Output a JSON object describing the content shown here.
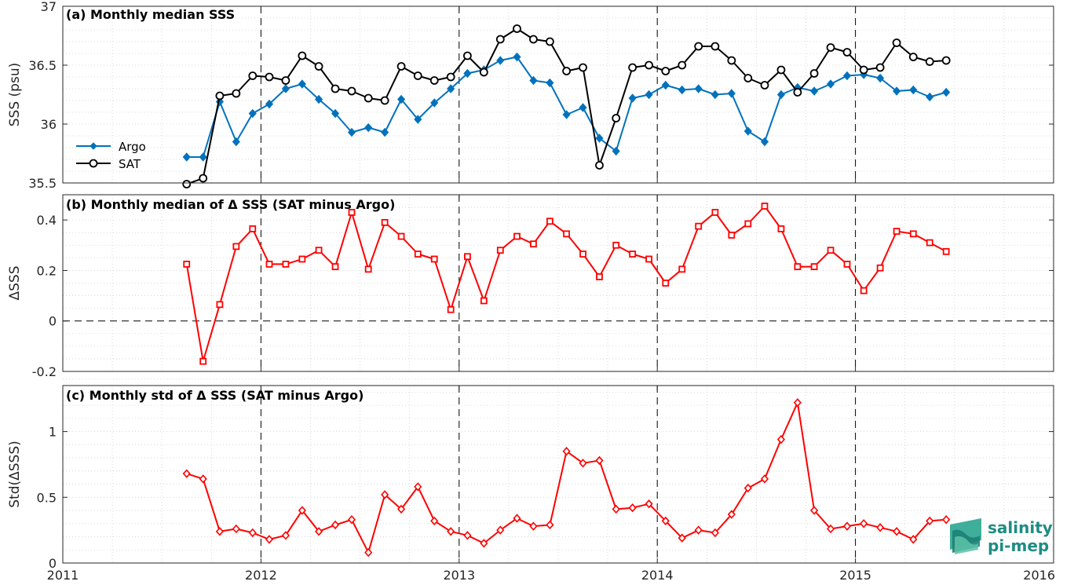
{
  "chart_data": [
    {
      "type": "line",
      "title": "(a) Monthly median SSS",
      "ylabel": "SSS (psu)",
      "xlim": [
        2011,
        2016
      ],
      "ylim": [
        35.5,
        37
      ],
      "xticks": [
        "2011",
        "2012",
        "2013",
        "2014",
        "2015",
        "2016"
      ],
      "yticks": [
        "35.5",
        "36",
        "36.5",
        "37"
      ],
      "grid": true,
      "legend_position": "middle-left",
      "x": [
        2011.625,
        2011.708,
        2011.792,
        2011.875,
        2011.958,
        2012.042,
        2012.125,
        2012.208,
        2012.292,
        2012.375,
        2012.458,
        2012.542,
        2012.625,
        2012.708,
        2012.792,
        2012.875,
        2012.958,
        2013.042,
        2013.125,
        2013.208,
        2013.292,
        2013.375,
        2013.458,
        2013.542,
        2013.625,
        2013.708,
        2013.792,
        2013.875,
        2013.958,
        2014.042,
        2014.125,
        2014.208,
        2014.292,
        2014.375,
        2014.458,
        2014.542,
        2014.625,
        2014.708,
        2014.792,
        2014.875,
        2014.958,
        2015.042,
        2015.125,
        2015.208,
        2015.292,
        2015.375,
        2015.458
      ],
      "series": [
        {
          "name": "Argo",
          "color": "#0072bd",
          "marker": "diamond",
          "values": [
            35.72,
            35.72,
            36.19,
            35.85,
            36.09,
            36.17,
            36.3,
            36.34,
            36.21,
            36.09,
            35.93,
            35.97,
            35.93,
            36.21,
            36.04,
            36.18,
            36.3,
            36.43,
            36.46,
            36.54,
            36.57,
            36.37,
            36.35,
            36.08,
            36.14,
            35.88,
            35.77,
            36.22,
            36.25,
            36.33,
            36.29,
            36.3,
            36.25,
            36.26,
            35.94,
            35.85,
            36.25,
            36.31,
            36.28,
            36.34,
            36.41,
            36.42,
            36.39,
            36.28,
            36.29,
            36.23,
            36.27
          ]
        },
        {
          "name": "SAT",
          "color": "#000000",
          "marker": "circle",
          "values": [
            35.49,
            35.54,
            36.24,
            36.26,
            36.41,
            36.4,
            36.37,
            36.58,
            36.49,
            36.3,
            36.28,
            36.22,
            36.2,
            36.49,
            36.41,
            36.37,
            36.4,
            36.58,
            36.44,
            36.72,
            36.81,
            36.72,
            36.7,
            36.45,
            36.48,
            35.65,
            36.05,
            36.48,
            36.5,
            36.45,
            36.5,
            36.66,
            36.66,
            36.54,
            36.39,
            36.33,
            36.46,
            36.27,
            36.43,
            36.65,
            36.61,
            36.46,
            36.48,
            36.69,
            36.57,
            36.53,
            36.54
          ]
        }
      ],
      "reference_lines": [
        {
          "axis": "x",
          "value": 2012,
          "style": "dashed"
        },
        {
          "axis": "x",
          "value": 2013,
          "style": "dashed"
        },
        {
          "axis": "x",
          "value": 2014,
          "style": "dashed"
        },
        {
          "axis": "x",
          "value": 2015,
          "style": "dashed"
        }
      ]
    },
    {
      "type": "line",
      "title": "(b) Monthly median of Δ SSS (SAT minus Argo)",
      "ylabel": "ΔSSS",
      "xlim": [
        2011,
        2016
      ],
      "ylim": [
        -0.2,
        0.5
      ],
      "xticks": [
        "2011",
        "2012",
        "2013",
        "2014",
        "2015",
        "2016"
      ],
      "yticks": [
        "-0.2",
        "0",
        "0.2",
        "0.4"
      ],
      "grid": true,
      "x": [
        2011.625,
        2011.708,
        2011.792,
        2011.875,
        2011.958,
        2012.042,
        2012.125,
        2012.208,
        2012.292,
        2012.375,
        2012.458,
        2012.542,
        2012.625,
        2012.708,
        2012.792,
        2012.875,
        2012.958,
        2013.042,
        2013.125,
        2013.208,
        2013.292,
        2013.375,
        2013.458,
        2013.542,
        2013.625,
        2013.708,
        2013.792,
        2013.875,
        2013.958,
        2014.042,
        2014.125,
        2014.208,
        2014.292,
        2014.375,
        2014.458,
        2014.542,
        2014.625,
        2014.708,
        2014.792,
        2014.875,
        2014.958,
        2015.042,
        2015.125,
        2015.208,
        2015.292,
        2015.375,
        2015.458
      ],
      "series": [
        {
          "color": "#ff0000",
          "marker": "square",
          "values": [
            0.225,
            -0.16,
            0.065,
            0.295,
            0.365,
            0.225,
            0.225,
            0.245,
            0.28,
            0.215,
            0.43,
            0.205,
            0.39,
            0.335,
            0.265,
            0.245,
            0.045,
            0.255,
            0.08,
            0.28,
            0.335,
            0.305,
            0.395,
            0.345,
            0.265,
            0.175,
            0.3,
            0.265,
            0.245,
            0.15,
            0.205,
            0.375,
            0.43,
            0.34,
            0.385,
            0.455,
            0.365,
            0.215,
            0.215,
            0.28,
            0.225,
            0.12,
            0.21,
            0.355,
            0.345,
            0.31,
            0.275
          ]
        }
      ],
      "reference_lines": [
        {
          "axis": "y",
          "value": 0,
          "style": "dashed"
        },
        {
          "axis": "x",
          "value": 2012,
          "style": "dashed"
        },
        {
          "axis": "x",
          "value": 2013,
          "style": "dashed"
        },
        {
          "axis": "x",
          "value": 2014,
          "style": "dashed"
        },
        {
          "axis": "x",
          "value": 2015,
          "style": "dashed"
        }
      ]
    },
    {
      "type": "line",
      "title": "(c) Monthly std of Δ SSS (SAT minus Argo)",
      "ylabel": "Std(ΔSSS)",
      "xlim": [
        2011,
        2016
      ],
      "ylim": [
        0,
        1.35
      ],
      "xticks": [
        "2011",
        "2012",
        "2013",
        "2014",
        "2015",
        "2016"
      ],
      "yticks": [
        "0",
        "0.5",
        "1"
      ],
      "grid": true,
      "x": [
        2011.625,
        2011.708,
        2011.792,
        2011.875,
        2011.958,
        2012.042,
        2012.125,
        2012.208,
        2012.292,
        2012.375,
        2012.458,
        2012.542,
        2012.625,
        2012.708,
        2012.792,
        2012.875,
        2012.958,
        2013.042,
        2013.125,
        2013.208,
        2013.292,
        2013.375,
        2013.458,
        2013.542,
        2013.625,
        2013.708,
        2013.792,
        2013.875,
        2013.958,
        2014.042,
        2014.125,
        2014.208,
        2014.292,
        2014.375,
        2014.458,
        2014.542,
        2014.625,
        2014.708,
        2014.792,
        2014.875,
        2014.958,
        2015.042,
        2015.125,
        2015.208,
        2015.292,
        2015.375,
        2015.458
      ],
      "series": [
        {
          "color": "#ff0000",
          "marker": "diamond",
          "values": [
            0.68,
            0.64,
            0.24,
            0.26,
            0.23,
            0.18,
            0.21,
            0.4,
            0.24,
            0.29,
            0.33,
            0.08,
            0.52,
            0.41,
            0.58,
            0.32,
            0.24,
            0.21,
            0.15,
            0.25,
            0.34,
            0.28,
            0.29,
            0.85,
            0.76,
            0.78,
            0.41,
            0.42,
            0.45,
            0.32,
            0.19,
            0.25,
            0.23,
            0.37,
            0.57,
            0.64,
            0.94,
            1.22,
            0.4,
            0.26,
            0.28,
            0.3,
            0.27,
            0.24,
            0.18,
            0.32,
            0.33
          ]
        }
      ],
      "reference_lines": [
        {
          "axis": "x",
          "value": 2012,
          "style": "dashed"
        },
        {
          "axis": "x",
          "value": 2013,
          "style": "dashed"
        },
        {
          "axis": "x",
          "value": 2014,
          "style": "dashed"
        },
        {
          "axis": "x",
          "value": 2015,
          "style": "dashed"
        }
      ]
    }
  ],
  "logo": {
    "line1": "salinity",
    "line2": "pi-mep"
  }
}
